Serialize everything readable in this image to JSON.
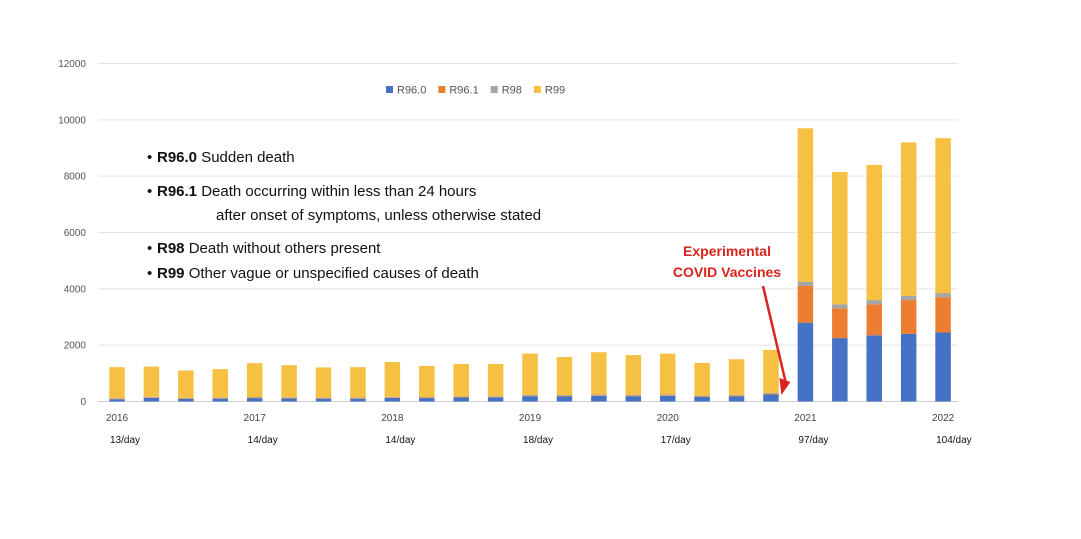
{
  "chart_data": {
    "type": "bar",
    "stacked": true,
    "ylim": [
      0,
      12000
    ],
    "y_ticks": [
      0,
      2000,
      4000,
      6000,
      8000,
      10000,
      12000
    ],
    "grid": "horizontal",
    "legend_placement": "top",
    "series": [
      {
        "name": "R96.0",
        "color": "#4472c4",
        "values": [
          80,
          130,
          90,
          100,
          120,
          110,
          100,
          100,
          130,
          120,
          140,
          150,
          190,
          180,
          200,
          190,
          200,
          160,
          180,
          250,
          2800,
          2250,
          2350,
          2400,
          2450
        ]
      },
      {
        "name": "R96.1",
        "color": "#ed7d31",
        "values": [
          20,
          20,
          20,
          20,
          20,
          20,
          20,
          20,
          20,
          20,
          20,
          20,
          20,
          20,
          20,
          20,
          20,
          20,
          20,
          30,
          1300,
          1050,
          1100,
          1200,
          1250
        ]
      },
      {
        "name": "R98",
        "color": "#a5a5a5",
        "values": [
          20,
          20,
          20,
          20,
          20,
          20,
          20,
          20,
          20,
          20,
          20,
          20,
          30,
          30,
          30,
          30,
          30,
          30,
          30,
          30,
          150,
          150,
          150,
          150,
          150
        ]
      },
      {
        "name": "R99",
        "color": "#f6c142",
        "values": [
          1100,
          1070,
          970,
          1010,
          1200,
          1140,
          1070,
          1080,
          1230,
          1100,
          1150,
          1140,
          1460,
          1350,
          1500,
          1410,
          1450,
          1160,
          1270,
          1520,
          5450,
          4700,
          4800,
          5450,
          5500
        ]
      }
    ],
    "x_labels": [
      {
        "label": "2016",
        "index": 0
      },
      {
        "label": "2017",
        "index": 4
      },
      {
        "label": "2018",
        "index": 8
      },
      {
        "label": "2019",
        "index": 12
      },
      {
        "label": "2020",
        "index": 16
      },
      {
        "label": "2021",
        "index": 20
      },
      {
        "label": "2022",
        "index": 24
      }
    ],
    "per_day_labels": [
      {
        "label": "13/day",
        "index": 0
      },
      {
        "label": "14/day",
        "index": 4
      },
      {
        "label": "14/day",
        "index": 8
      },
      {
        "label": "18/day",
        "index": 12
      },
      {
        "label": "17/day",
        "index": 16
      },
      {
        "label": "97/day",
        "index": 20
      },
      {
        "label": "104/day",
        "index": 24
      }
    ],
    "annotation": {
      "lines": [
        "Experimental",
        "COVID Vaccines"
      ],
      "color": "#d9231d",
      "points_to_index": 20
    },
    "notes": [
      {
        "code": "R96.0",
        "lines": [
          "Sudden death"
        ]
      },
      {
        "code": "R96.1",
        "lines": [
          "Death occurring within less than 24 hours",
          "after onset of symptoms, unless otherwise stated"
        ]
      },
      {
        "code": "R98",
        "lines": [
          "Death without others present"
        ]
      },
      {
        "code": "R99",
        "lines": [
          "Other vague or unspecified causes of death"
        ]
      }
    ]
  }
}
